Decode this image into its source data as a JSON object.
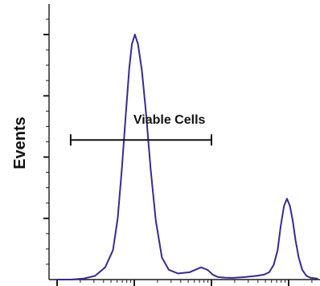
{
  "chart_data": {
    "type": "line",
    "title": "",
    "xlabel": "",
    "ylabel": "Events",
    "x_scale": "log",
    "xlim": [
      1,
      10000
    ],
    "ylim": [
      0,
      1
    ],
    "grid": false,
    "legend": "none",
    "series": [
      {
        "color": "#3b2a8c",
        "x": [
          1,
          1.5,
          2.2,
          3.1,
          4.2,
          5.3,
          6.1,
          6.9,
          7.8,
          8.6,
          9.3,
          10.2,
          11.2,
          12.6,
          14.2,
          16.3,
          19,
          22.8,
          28,
          37,
          52,
          73,
          89,
          104,
          122,
          150,
          190,
          270,
          380,
          480,
          560,
          640,
          720,
          790,
          870,
          950,
          1040,
          1130,
          1230,
          1350,
          1500,
          1700,
          1950,
          2350,
          3000,
          4000,
          6000,
          10000
        ],
        "y": [
          0,
          0,
          0.004,
          0.015,
          0.05,
          0.12,
          0.25,
          0.45,
          0.68,
          0.86,
          0.96,
          1.0,
          0.96,
          0.85,
          0.68,
          0.45,
          0.24,
          0.09,
          0.04,
          0.025,
          0.03,
          0.05,
          0.04,
          0.02,
          0.01,
          0.008,
          0.007,
          0.01,
          0.015,
          0.02,
          0.03,
          0.06,
          0.12,
          0.22,
          0.3,
          0.33,
          0.3,
          0.24,
          0.16,
          0.09,
          0.04,
          0.015,
          0.007,
          0.004,
          0.002,
          0.001,
          0.001,
          0
        ]
      }
    ],
    "gate": {
      "label": "Viable Cells",
      "x_start": 1.5,
      "x_end": 100,
      "level": 0.57
    }
  },
  "colors": {
    "series": "#3b2a8c",
    "axis": "#1a1a1a",
    "gate": "#111111"
  }
}
